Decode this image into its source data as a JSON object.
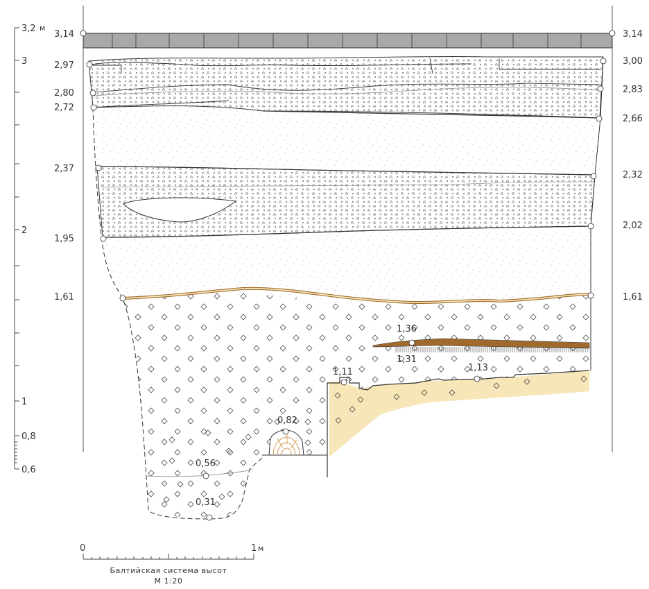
{
  "left_scale": {
    "unit": "м",
    "ticks": [
      {
        "label": "3,2",
        "value": 3.2
      },
      {
        "label": "3",
        "value": 3.0
      },
      {
        "label": "2",
        "value": 2.0
      },
      {
        "label": "1",
        "value": 1.0
      },
      {
        "label": "0,8",
        "value": 0.8
      },
      {
        "label": "0,6",
        "value": 0.6
      }
    ]
  },
  "elevations_left": [
    "3,14",
    "2,97",
    "2,80",
    "2,72",
    "2,37",
    "1,95",
    "1,61"
  ],
  "elevations_right": [
    "3,14",
    "3,00",
    "2,83",
    "2,66",
    "2,32",
    "2,02",
    "1,61"
  ],
  "elevations_inner": [
    "1,36",
    "1,31",
    "1,11",
    "1,13",
    "0,82",
    "0,56",
    "0,31"
  ],
  "scale_bar": {
    "start_label": "0",
    "end_label": "1",
    "unit": "м",
    "caption": "Балтийская система высот",
    "ratio": "М 1:20"
  },
  "colors": {
    "line": "#333333",
    "pavement": "#a8a8a8",
    "sand": "#f7e6b8",
    "brown": "#a06a2c",
    "light_line": "#999999"
  }
}
